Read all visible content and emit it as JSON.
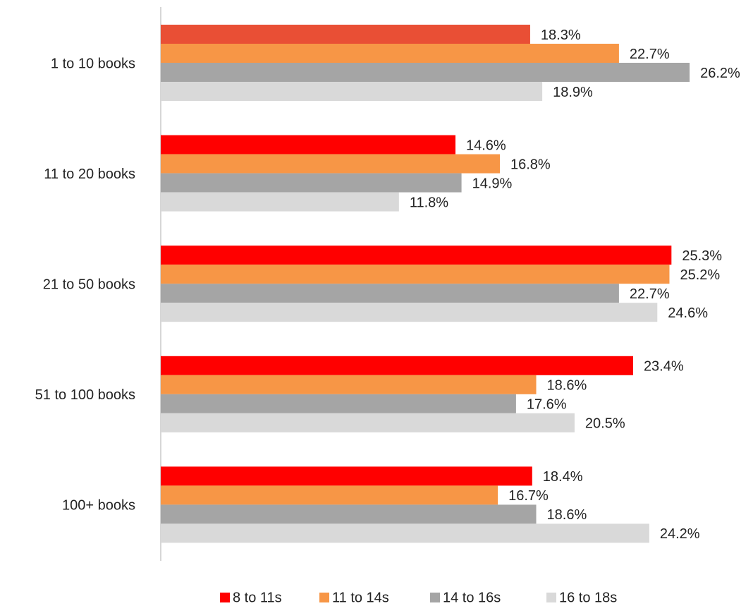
{
  "chart_data": {
    "type": "hbar",
    "categories": [
      "1 to 10 books",
      "11 to 20 books",
      "21 to 50 books",
      "51 to 100 books",
      "100+ books"
    ],
    "series": [
      {
        "name": "8 to 11s",
        "color": "#ff0000",
        "colors": [
          "#e94f35",
          "#ff0000",
          "#ff0000",
          "#ff0000",
          "#ff0000"
        ],
        "values": [
          18.3,
          14.6,
          25.3,
          23.4,
          18.4
        ],
        "value_labels": [
          "18.3%",
          "14.6%",
          "25.3%",
          "23.4%",
          "18.4%"
        ]
      },
      {
        "name": "11 to 14s",
        "color": "#f79646",
        "values": [
          22.7,
          16.8,
          25.2,
          18.6,
          16.7
        ],
        "value_labels": [
          "22.7%",
          "16.8%",
          "25.2%",
          "18.6%",
          "16.7%"
        ]
      },
      {
        "name": "14 to 16s",
        "color": "#a5a5a5",
        "values": [
          26.2,
          14.9,
          22.7,
          17.6,
          18.6
        ],
        "value_labels": [
          "26.2%",
          "14.9%",
          "22.7%",
          "17.6%",
          "18.6%"
        ]
      },
      {
        "name": "16 to 18s",
        "color": "#d9d9d9",
        "values": [
          18.9,
          11.8,
          24.6,
          20.5,
          24.2
        ],
        "value_labels": [
          "18.9%",
          "11.8%",
          "24.6%",
          "20.5%",
          "24.2%"
        ]
      }
    ],
    "legend": "bottom"
  }
}
